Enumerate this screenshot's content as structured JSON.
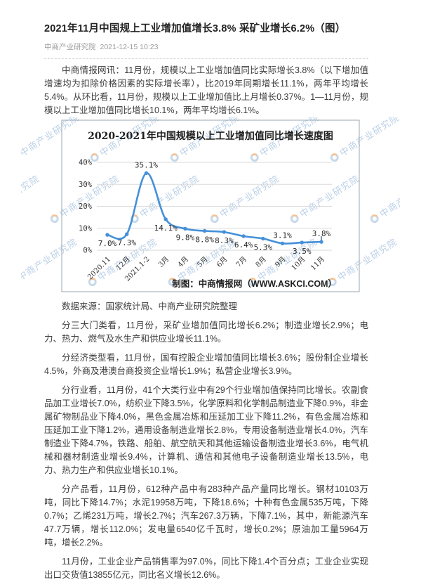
{
  "article": {
    "title": "2021年11月中国规上工业增加值增长3.8% 采矿业增长6.2%（图）",
    "source": "中商产业研究院",
    "datetime": "2021-12-15 10:23",
    "paragraphs": {
      "intro": "中商情报网讯：11月份，规模以上工业增加值同比实际增长3.8%（以下增加值增速均为扣除价格因素的实际增长率），比2019年同期增长11.1%，两年平均增长5.4%。从环比看，11月份，规模以上工业增加值比上月增长0.37%。1—11月份，规模以上工业增加值同比增长10.1%，两年平均增长6.1%。",
      "data_source": "数据来源：国家统计局、中商产业研究院整理",
      "by_category": "分三大门类看，11月份，采矿业增加值同比增长6.2%；制造业增长2.9%；电力、热力、燃气及水生产和供应业增长11.1%。",
      "by_type": "分经济类型看，11月份，国有控股企业增加值同比增长3.6%；股份制企业增长4.5%，外商及港澳台商投资企业增长1.9%；私营企业增长3.9%。",
      "by_industry": "分行业看，11月份，41个大类行业中有29个行业增加值保持同比增长。农副食品加工业增长7.0%，纺织业下降3.5%，化学原料和化学制品制造业下降0.9%，非金属矿物制品业下降4.0%，黑色金属冶炼和压延加工业下降11.2%，有色金属冶炼和压延加工业下降1.2%，通用设备制造业增长2.8%，专用设备制造业增长4.0%，汽车制造业下降4.7%，铁路、船舶、航空航天和其他运输设备制造业增长3.6%，电气机械和器材制造业增长9.4%，计算机、通信和其他电子设备制造业增长13.5%，电力、热力生产和供应业增长10.1%。",
      "by_product": "分产品看，11月份，612种产品中有283种产品产量同比增长。钢材10103万吨，同比下降14.7%；水泥19958万吨，下降18.6%；十种有色金属535万吨，下降0.7%；乙烯231万吨，增长2.7%；汽车267.3万辆，下降7.1%，其中，新能源汽车47.7万辆，增长112.0%；发电量6540亿千瓦时，增长0.2%；原油加工量5964万吨，增长2.2%。",
      "sales": "11月份，工业企业产品销售率为97.0%，同比下降1.4个百分点；工业企业实现出口交货值13855亿元，同比名义增长12.6%。"
    }
  },
  "chart_data": {
    "type": "line",
    "title": "2020-2021年中国规模以上工业增加值同比增长速度图",
    "categories": [
      "2020.11",
      "12月",
      "2021.1-2",
      "3月",
      "4月",
      "5月",
      "6月",
      "7月",
      "8月",
      "9月",
      "10月",
      "11月"
    ],
    "values": [
      7.0,
      7.3,
      35.1,
      14.1,
      9.8,
      8.8,
      8.3,
      6.4,
      5.3,
      3.1,
      3.5,
      3.8
    ],
    "point_labels": [
      "7.0%",
      "7.3%",
      "35.1%",
      "14.1%",
      "9.8%",
      "8.8%",
      "8.3%",
      "6.4%",
      "5.3%",
      "3.1%",
      "3.5%",
      "3.8%"
    ],
    "label_pos": [
      "below",
      "below",
      "above",
      "below",
      "below",
      "below",
      "below",
      "below",
      "below",
      "above",
      "below",
      "above"
    ],
    "ylim": [
      0,
      40
    ],
    "yticks": [
      0,
      10,
      20,
      30,
      40
    ],
    "ytick_suffix": "%",
    "grid": true,
    "legend": "none",
    "line_color": "#4590d9",
    "grid_color": "#dadada",
    "border_color": "#9aa7b1",
    "caption": "制图：中商情报网（WWW.ASKCI.COM）",
    "watermark": "中商产业研究院"
  }
}
